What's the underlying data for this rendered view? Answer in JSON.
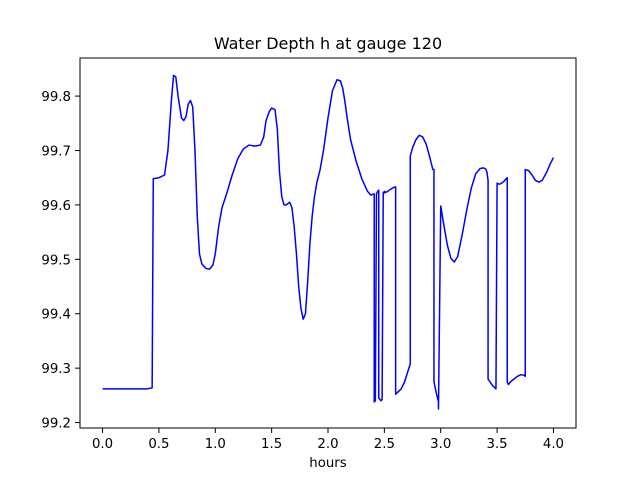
{
  "chart_data": {
    "type": "line",
    "title": "Water Depth h at gauge 120",
    "xlabel": "hours",
    "ylabel": "",
    "xlim": [
      -0.2,
      4.2
    ],
    "ylim": [
      99.19,
      99.87
    ],
    "grid": false,
    "legend": "none",
    "xticks": [
      0.0,
      0.5,
      1.0,
      1.5,
      2.0,
      2.5,
      3.0,
      3.5,
      4.0
    ],
    "xtick_labels": [
      "0.0",
      "0.5",
      "1.0",
      "1.5",
      "2.0",
      "2.5",
      "3.0",
      "3.5",
      "4.0"
    ],
    "yticks": [
      99.2,
      99.3,
      99.4,
      99.5,
      99.6,
      99.7,
      99.8
    ],
    "ytick_labels": [
      "99.2",
      "99.3",
      "99.4",
      "99.5",
      "99.6",
      "99.7",
      "99.8"
    ],
    "line_color": "#0000ff",
    "series": [
      {
        "x": [
          0.0,
          0.1,
          0.2,
          0.3,
          0.4,
          0.44,
          0.45,
          0.5,
          0.55,
          0.58,
          0.61,
          0.63,
          0.65,
          0.67,
          0.7,
          0.72,
          0.74,
          0.76,
          0.78,
          0.8,
          0.82,
          0.84,
          0.86,
          0.88,
          0.9,
          0.92,
          0.95,
          0.98,
          1.0,
          1.03,
          1.06,
          1.1,
          1.15,
          1.2,
          1.25,
          1.3,
          1.35,
          1.4,
          1.43,
          1.45,
          1.48,
          1.5,
          1.53,
          1.55,
          1.57,
          1.59,
          1.61,
          1.63,
          1.66,
          1.68,
          1.7,
          1.72,
          1.74,
          1.76,
          1.78,
          1.8,
          1.82,
          1.84,
          1.86,
          1.88,
          1.9,
          1.93,
          1.96,
          2.0,
          2.04,
          2.08,
          2.11,
          2.13,
          2.15,
          2.17,
          2.2,
          2.25,
          2.3,
          2.35,
          2.38,
          2.4,
          2.41,
          2.41,
          2.42,
          2.43,
          2.44,
          2.45,
          2.45,
          2.46,
          2.47,
          2.48,
          2.49,
          2.5,
          2.5,
          2.51,
          2.53,
          2.55,
          2.58,
          2.6,
          2.6,
          2.62,
          2.65,
          2.68,
          2.71,
          2.73,
          2.73,
          2.75,
          2.78,
          2.81,
          2.84,
          2.87,
          2.9,
          2.93,
          2.94,
          2.94,
          2.96,
          2.98,
          2.98,
          3.0,
          3.03,
          3.06,
          3.09,
          3.12,
          3.15,
          3.19,
          3.23,
          3.27,
          3.31,
          3.35,
          3.38,
          3.4,
          3.41,
          3.42,
          3.42,
          3.46,
          3.49,
          3.5,
          3.52,
          3.54,
          3.56,
          3.58,
          3.59,
          3.59,
          3.6,
          3.62,
          3.65,
          3.68,
          3.71,
          3.74,
          3.75,
          3.75,
          3.78,
          3.81,
          3.84,
          3.87,
          3.9,
          3.94,
          3.97,
          4.0
        ],
        "y": [
          99.262,
          99.262,
          99.262,
          99.262,
          99.262,
          99.264,
          99.648,
          99.65,
          99.655,
          99.7,
          99.79,
          99.838,
          99.835,
          99.8,
          99.76,
          99.755,
          99.762,
          99.785,
          99.792,
          99.78,
          99.7,
          99.58,
          99.51,
          99.492,
          99.487,
          99.483,
          99.482,
          99.49,
          99.51,
          99.56,
          99.595,
          99.62,
          99.655,
          99.685,
          99.703,
          99.71,
          99.708,
          99.71,
          99.725,
          99.755,
          99.772,
          99.778,
          99.775,
          99.74,
          99.66,
          99.615,
          99.6,
          99.6,
          99.605,
          99.595,
          99.56,
          99.51,
          99.45,
          99.41,
          99.39,
          99.4,
          99.46,
          99.53,
          99.58,
          99.615,
          99.64,
          99.665,
          99.7,
          99.76,
          99.81,
          99.83,
          99.828,
          99.815,
          99.79,
          99.76,
          99.72,
          99.68,
          99.648,
          99.625,
          99.618,
          99.62,
          99.62,
          99.238,
          99.24,
          99.62,
          99.625,
          99.627,
          99.245,
          99.243,
          99.24,
          99.242,
          99.623,
          99.622,
          99.625,
          99.623,
          99.625,
          99.628,
          99.632,
          99.633,
          99.252,
          99.256,
          99.262,
          99.275,
          99.295,
          99.308,
          99.69,
          99.705,
          99.72,
          99.728,
          99.725,
          99.712,
          99.69,
          99.665,
          99.665,
          99.275,
          99.255,
          99.238,
          99.225,
          99.598,
          99.56,
          99.525,
          99.502,
          99.495,
          99.505,
          99.545,
          99.59,
          99.63,
          99.657,
          99.667,
          99.668,
          99.666,
          99.66,
          99.645,
          99.28,
          99.268,
          99.262,
          99.64,
          99.638,
          99.64,
          99.643,
          99.648,
          99.65,
          99.275,
          99.27,
          99.275,
          99.28,
          99.285,
          99.288,
          99.287,
          99.285,
          99.665,
          99.663,
          99.655,
          99.645,
          99.642,
          99.645,
          99.66,
          99.675,
          99.687
        ]
      }
    ]
  }
}
